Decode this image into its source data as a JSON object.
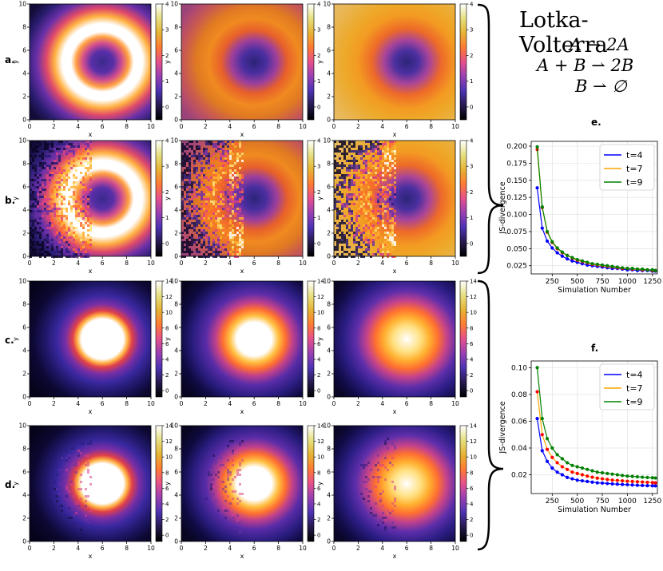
{
  "figure": {
    "title": "Lotka-Volterra",
    "reactions": [
      "A ⇀ 2A",
      "A + B ⇀ 2B",
      "B ⇀ ∅"
    ],
    "row_labels": [
      "a.",
      "b.",
      "c.",
      "d."
    ],
    "panel_labels": [
      "e.",
      "f."
    ]
  },
  "chart_data": [
    {
      "type": "heatmap",
      "id": "heatmaps",
      "description_rows": [
        "a",
        "b",
        "c",
        "d"
      ],
      "columns": 3,
      "xlabel": "x",
      "ylabel": "y",
      "xlim": [
        0,
        10
      ],
      "ylim": [
        0,
        10
      ],
      "xticks": [
        "0",
        "2",
        "4",
        "6",
        "8",
        "10"
      ],
      "yticks": [
        "0",
        "2",
        "4",
        "6",
        "8",
        "10"
      ],
      "colormap": "CMRmap",
      "colorbar_ranges": [
        [
          -0.5,
          4
        ],
        [
          -0.5,
          4
        ],
        [
          -0.8,
          14
        ],
        [
          -0.8,
          14
        ]
      ],
      "colorbar_ticks": [
        [
          "0",
          "1",
          "2",
          "3",
          "4"
        ],
        [
          "0",
          "1",
          "2",
          "3",
          "4"
        ],
        [
          "0",
          "2",
          "4",
          "6",
          "8",
          "10",
          "12",
          "14"
        ],
        [
          "0",
          "2",
          "4",
          "6",
          "8",
          "10",
          "12",
          "14"
        ]
      ]
    },
    {
      "type": "line",
      "id": "e",
      "title": "e.",
      "xlabel": "Simulation Number",
      "ylabel": "JS-divergence",
      "xlim": [
        40,
        1300
      ],
      "ylim": [
        0.013,
        0.207
      ],
      "xticks": [
        250,
        500,
        750,
        1000,
        1250
      ],
      "yticks": [
        0.025,
        0.05,
        0.075,
        0.1,
        0.125,
        0.15,
        0.175,
        0.2
      ],
      "x": [
        100,
        150,
        200,
        250,
        300,
        350,
        400,
        450,
        500,
        550,
        600,
        650,
        700,
        750,
        800,
        850,
        900,
        950,
        1000,
        1050,
        1100,
        1150,
        1200,
        1250,
        1280
      ],
      "series": [
        {
          "name": "t=4",
          "line_color": "#0000ff",
          "marker_color": "#0000ff",
          "values": [
            0.139,
            0.08,
            0.061,
            0.051,
            0.044,
            0.039,
            0.035,
            0.032,
            0.03,
            0.028,
            0.026,
            0.025,
            0.024,
            0.023,
            0.022,
            0.021,
            0.021,
            0.02,
            0.019,
            0.019,
            0.018,
            0.018,
            0.018,
            0.017,
            0.017
          ]
        },
        {
          "name": "t=7",
          "line_color": "#ffa500",
          "marker_color": "#ff0000",
          "values": [
            0.195,
            0.11,
            0.074,
            0.059,
            0.05,
            0.044,
            0.04,
            0.036,
            0.033,
            0.031,
            0.029,
            0.027,
            0.026,
            0.025,
            0.024,
            0.023,
            0.022,
            0.021,
            0.021,
            0.02,
            0.02,
            0.019,
            0.019,
            0.018,
            0.018
          ]
        },
        {
          "name": "t=9",
          "line_color": "#008000",
          "marker_color": "#008000",
          "values": [
            0.199,
            0.111,
            0.075,
            0.06,
            0.051,
            0.045,
            0.04,
            0.037,
            0.034,
            0.032,
            0.03,
            0.028,
            0.027,
            0.026,
            0.025,
            0.024,
            0.023,
            0.022,
            0.021,
            0.021,
            0.02,
            0.02,
            0.019,
            0.019,
            0.018
          ]
        }
      ]
    },
    {
      "type": "line",
      "id": "f",
      "title": "f.",
      "xlabel": "Simulation Number",
      "ylabel": "JS-divergence",
      "xlim": [
        40,
        1300
      ],
      "ylim": [
        0.006,
        0.105
      ],
      "xticks": [
        250,
        500,
        750,
        1000,
        1250
      ],
      "yticks": [
        0.02,
        0.04,
        0.06,
        0.08,
        0.1
      ],
      "x": [
        100,
        150,
        200,
        250,
        300,
        350,
        400,
        450,
        500,
        550,
        600,
        650,
        700,
        750,
        800,
        850,
        900,
        950,
        1000,
        1050,
        1100,
        1150,
        1200,
        1250,
        1280
      ],
      "series": [
        {
          "name": "t=4",
          "line_color": "#0000ff",
          "marker_color": "#0000ff",
          "values": [
            0.062,
            0.038,
            0.03,
            0.025,
            0.022,
            0.02,
            0.018,
            0.017,
            0.016,
            0.0155,
            0.015,
            0.0145,
            0.014,
            0.0138,
            0.0135,
            0.0132,
            0.013,
            0.0128,
            0.0126,
            0.0124,
            0.0122,
            0.012,
            0.0119,
            0.0118,
            0.0117
          ]
        },
        {
          "name": "t=7",
          "line_color": "#ffa500",
          "marker_color": "#ff0000",
          "values": [
            0.082,
            0.05,
            0.039,
            0.033,
            0.029,
            0.026,
            0.024,
            0.022,
            0.021,
            0.02,
            0.019,
            0.0182,
            0.0175,
            0.017,
            0.0165,
            0.016,
            0.0158,
            0.0155,
            0.0152,
            0.015,
            0.0148,
            0.0146,
            0.0144,
            0.0142,
            0.014
          ]
        },
        {
          "name": "t=9",
          "line_color": "#008000",
          "marker_color": "#008000",
          "values": [
            0.1,
            0.062,
            0.047,
            0.04,
            0.035,
            0.032,
            0.029,
            0.027,
            0.026,
            0.025,
            0.024,
            0.023,
            0.022,
            0.0215,
            0.021,
            0.0205,
            0.02,
            0.0195,
            0.019,
            0.0188,
            0.0185,
            0.0182,
            0.018,
            0.0178,
            0.0176
          ]
        }
      ]
    }
  ]
}
